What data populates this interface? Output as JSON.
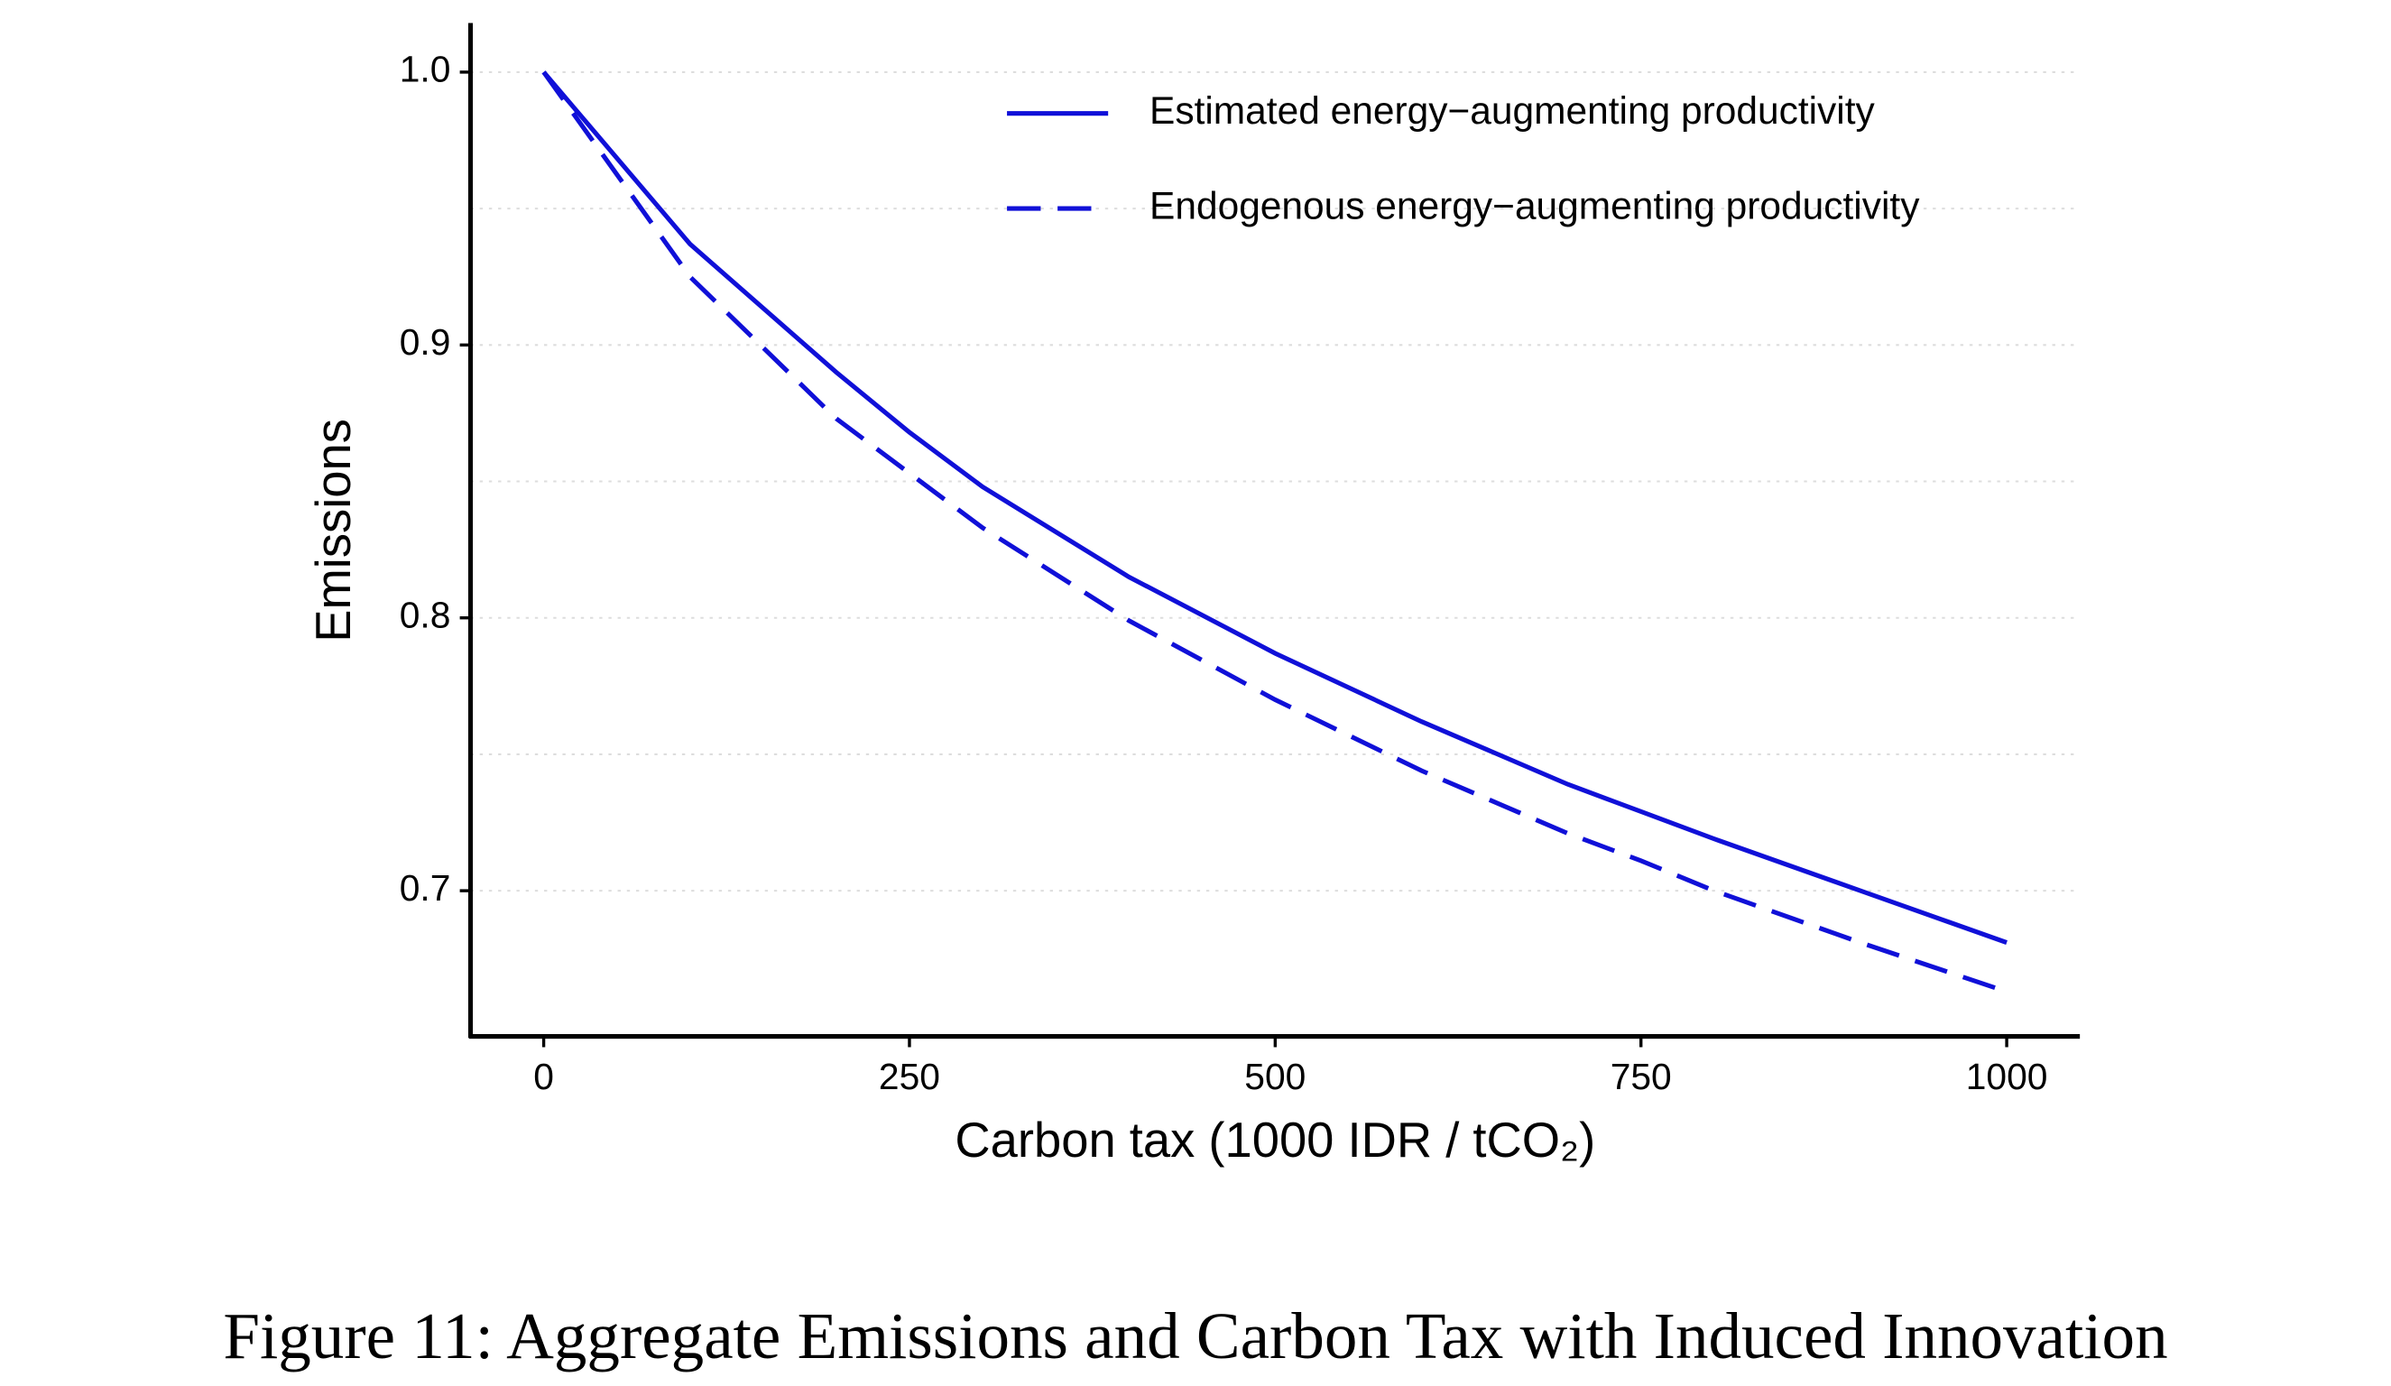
{
  "chart_data": {
    "type": "line",
    "x_label": "Carbon tax (1000 IDR / tCO₂)",
    "y_label": "Emissions",
    "caption": "Figure 11: Aggregate Emissions and Carbon Tax with Induced Innovation",
    "x": [
      0,
      100,
      200,
      250,
      300,
      400,
      500,
      600,
      700,
      750,
      800,
      900,
      1000
    ],
    "series": [
      {
        "name": "Estimated energy−augmenting productivity",
        "color": "#1010d8",
        "dash": false,
        "values": [
          1.0,
          0.937,
          0.89,
          0.868,
          0.848,
          0.815,
          0.787,
          0.762,
          0.739,
          0.729,
          0.719,
          0.7,
          0.681
        ]
      },
      {
        "name": "Endogenous energy−augmenting productivity",
        "color": "#1010d8",
        "dash": true,
        "values": [
          1.0,
          0.925,
          0.873,
          0.853,
          0.833,
          0.799,
          0.77,
          0.744,
          0.721,
          0.711,
          0.7,
          0.681,
          0.663
        ]
      }
    ],
    "xlim": [
      -50,
      1050
    ],
    "ylim": [
      0.6466,
      1.018
    ],
    "xticks": [
      0,
      250,
      500,
      750,
      1000
    ],
    "yticks": [
      0.7,
      0.8,
      0.9,
      {
        "value": 1,
        "label": "1.0"
      }
    ],
    "ygrid_minor": [
      0.75,
      0.85,
      0.95
    ],
    "grid": true,
    "legend": "top-right"
  }
}
